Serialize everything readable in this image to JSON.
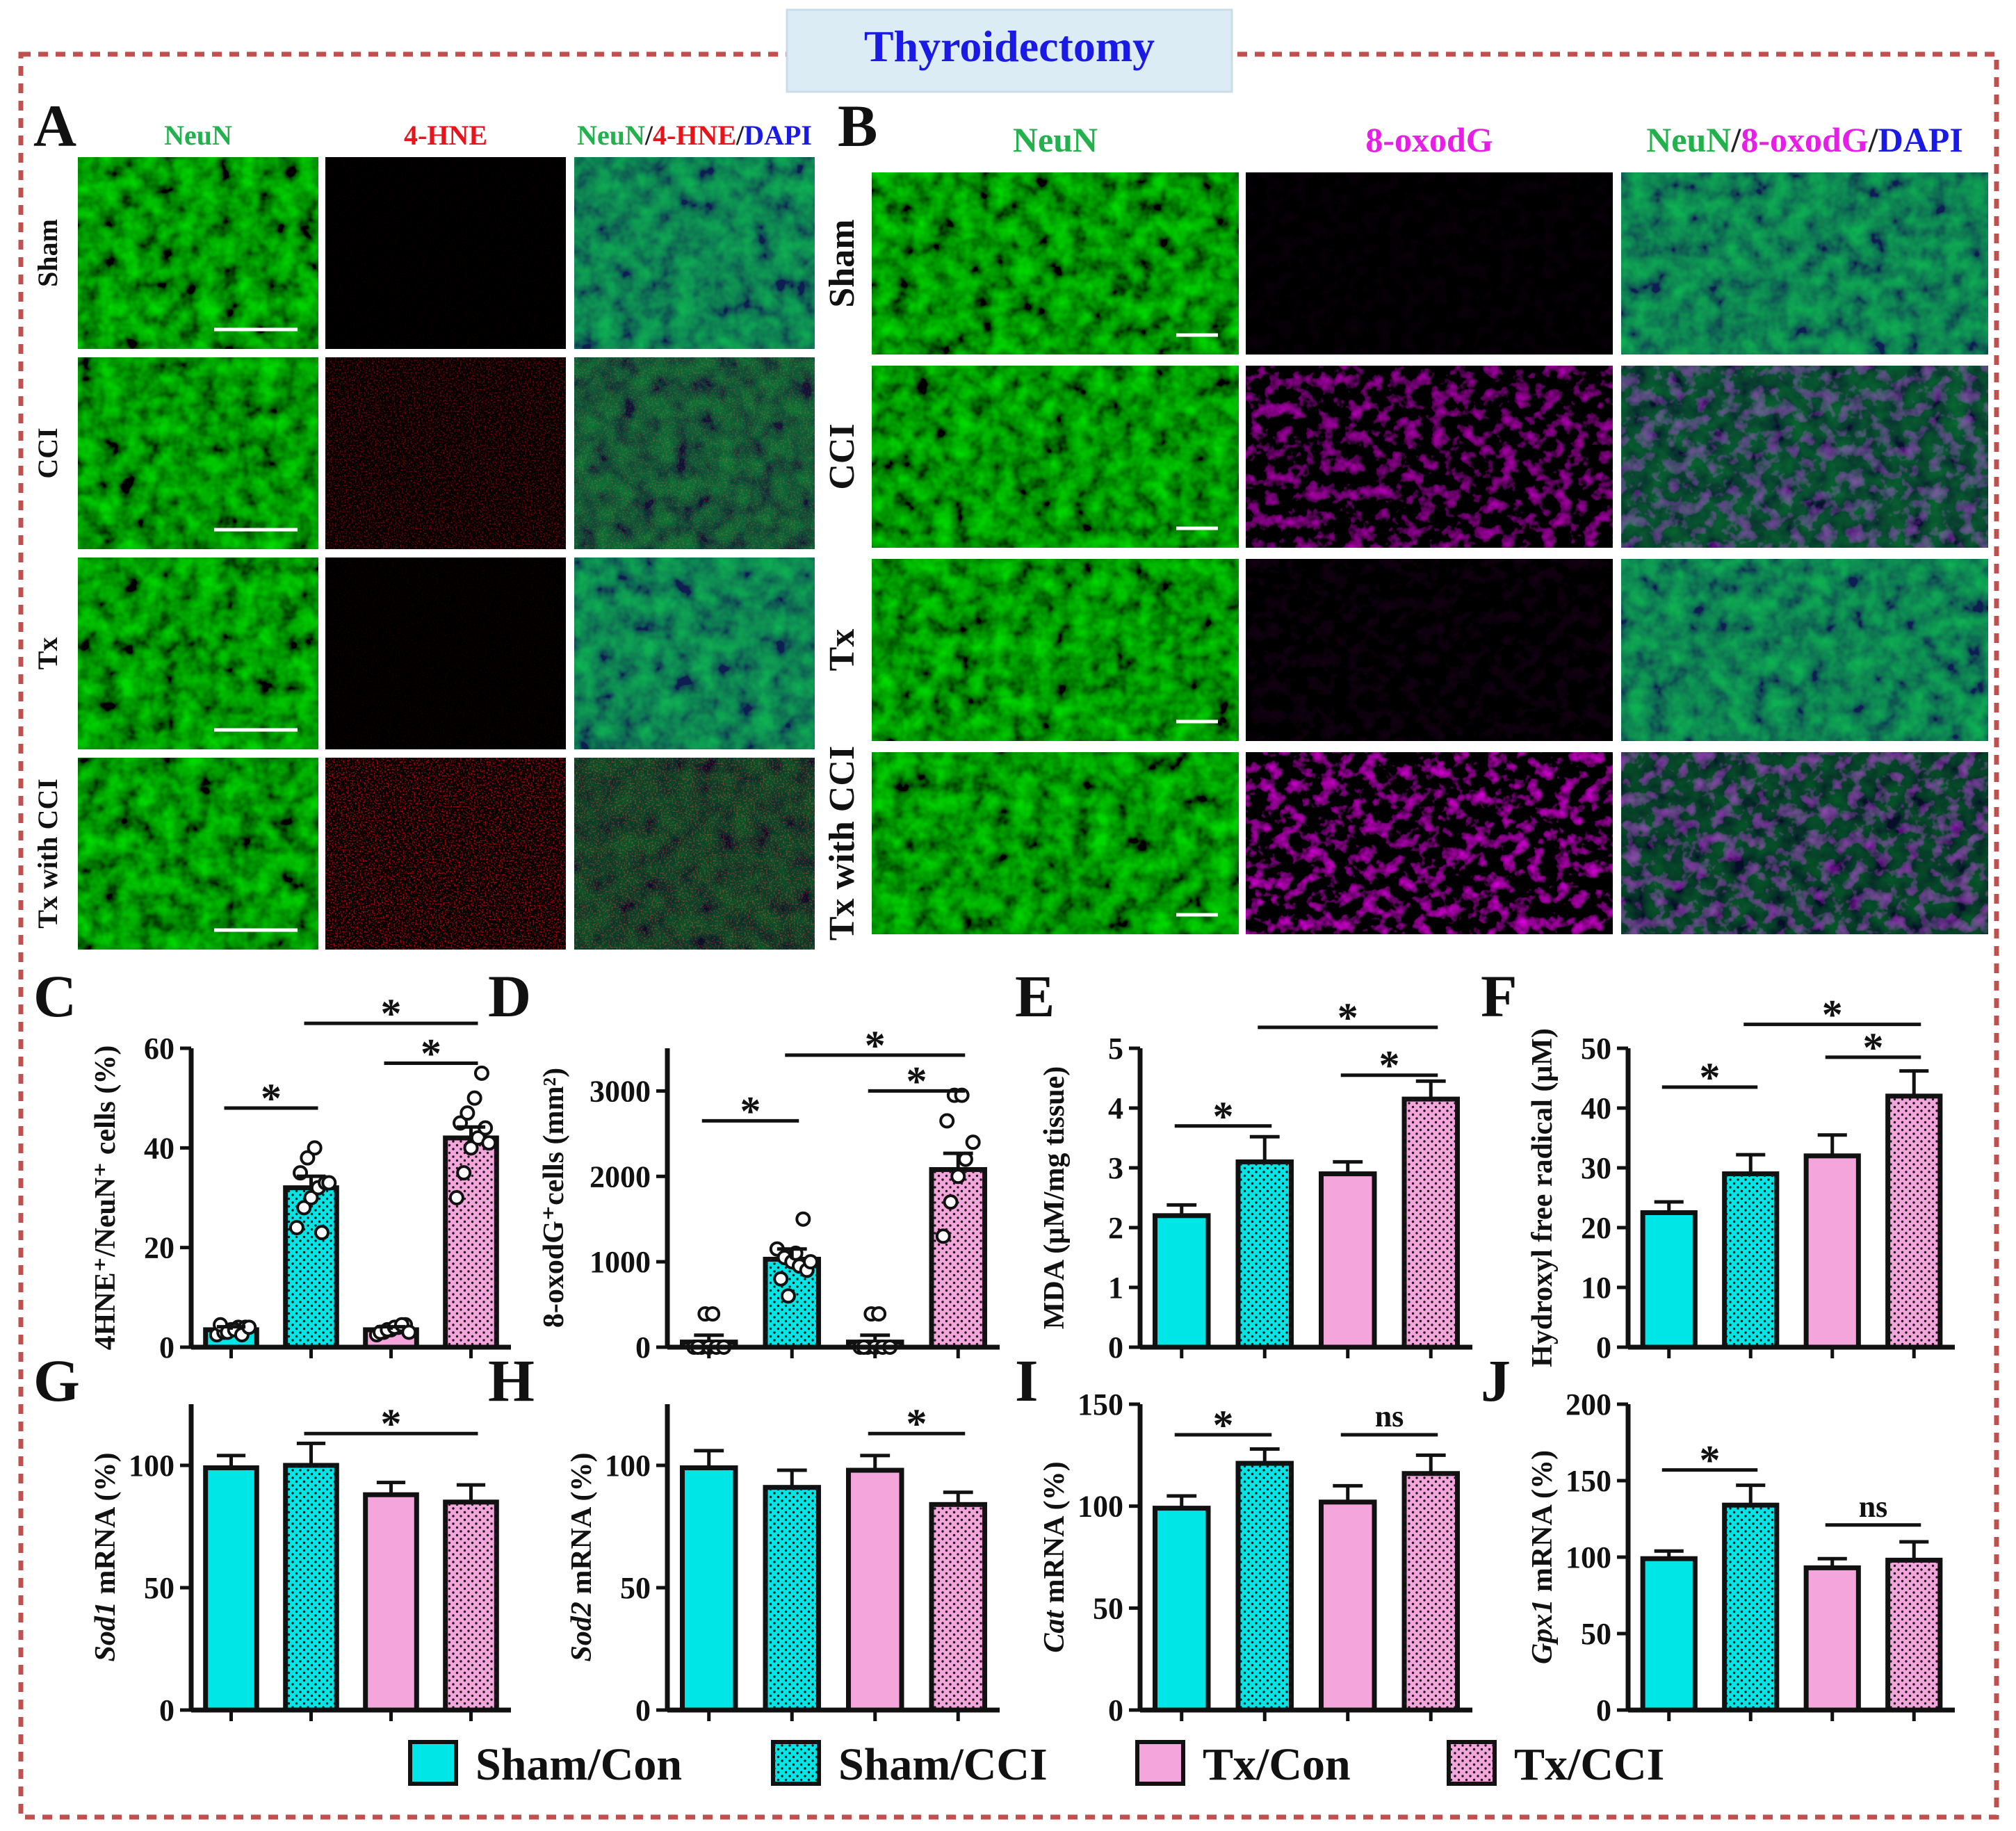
{
  "title": "Thyroidectomy",
  "panel_letters": [
    "A",
    "B",
    "C",
    "D",
    "E",
    "F",
    "G",
    "H",
    "I",
    "J"
  ],
  "panel_A": {
    "columns": [
      {
        "parts": [
          {
            "text": "NeuN",
            "color": "#22b14c"
          }
        ]
      },
      {
        "parts": [
          {
            "text": "4-HNE",
            "color": "#e8141c"
          }
        ]
      },
      {
        "parts": [
          {
            "text": "NeuN",
            "color": "#22b14c"
          },
          {
            "text": "/",
            "color": "#222222"
          },
          {
            "text": "4-HNE",
            "color": "#e8141c"
          },
          {
            "text": "/",
            "color": "#222222"
          },
          {
            "text": "DAPI",
            "color": "#1a1ae6"
          }
        ]
      }
    ],
    "rows": [
      "Sham",
      "CCI",
      "Tx",
      "Tx with CCI"
    ]
  },
  "panel_B": {
    "columns": [
      {
        "parts": [
          {
            "text": "NeuN",
            "color": "#22b14c"
          }
        ]
      },
      {
        "parts": [
          {
            "text": "8-oxodG",
            "color": "#e61ee6"
          }
        ]
      },
      {
        "parts": [
          {
            "text": "NeuN",
            "color": "#22b14c"
          },
          {
            "text": "/",
            "color": "#222222"
          },
          {
            "text": "8-oxodG",
            "color": "#e61ee6"
          },
          {
            "text": "/",
            "color": "#222222"
          },
          {
            "text": "DAPI",
            "color": "#1a1ae6"
          }
        ]
      }
    ],
    "rows": [
      "Sham",
      "CCI",
      "Tx",
      "Tx with CCI"
    ]
  },
  "legend": [
    {
      "label": "Sham/Con",
      "color": "#00e5e5",
      "pattern": false
    },
    {
      "label": "Sham/CCI",
      "color": "#00e5e5",
      "pattern": true
    },
    {
      "label": "Tx/Con",
      "color": "#f4a6dc",
      "pattern": false
    },
    {
      "label": "Tx/CCI",
      "color": "#f4a6dc",
      "pattern": true
    }
  ],
  "chart_data": [
    {
      "panel": "C",
      "type": "bar",
      "categories": [
        "Sham/Con",
        "Sham/CCI",
        "Tx/Con",
        "Tx/CCI"
      ],
      "ylabel": "4HNE⁺/NeuN⁺ cells (%)",
      "ylim": [
        0,
        60
      ],
      "yticks": [
        0,
        20,
        40,
        60
      ],
      "values": [
        3.5,
        32,
        3.5,
        42
      ],
      "errors": [
        0.6,
        2.3,
        0.6,
        2.2
      ],
      "points": [
        [
          2.5,
          3,
          3.5,
          4,
          4,
          4.5,
          3,
          3.5,
          2.5,
          4
        ],
        [
          24,
          28,
          30,
          32,
          33,
          35,
          38,
          40,
          23,
          33
        ],
        [
          2.5,
          3,
          3.5,
          4,
          4.5,
          3,
          3.5,
          4,
          4.5,
          3
        ],
        [
          30,
          35,
          40,
          42,
          44,
          45,
          47,
          50,
          55,
          41
        ]
      ],
      "significance": [
        {
          "a": 0,
          "b": 1,
          "label": "*",
          "y": 48
        },
        {
          "a": 2,
          "b": 3,
          "label": "*",
          "y": 57
        },
        {
          "a": 1,
          "b": 3,
          "label": "*",
          "y": 65
        }
      ]
    },
    {
      "panel": "D",
      "type": "bar",
      "categories": [
        "Sham/Con",
        "Sham/CCI",
        "Tx/Con",
        "Tx/CCI"
      ],
      "ylabel": "8-oxodG⁺cells (mm²)",
      "ylim": [
        0,
        3500
      ],
      "yticks": [
        0,
        1000,
        2000,
        3000
      ],
      "values": [
        60,
        1030,
        60,
        2080
      ],
      "errors": [
        80,
        120,
        80,
        190
      ],
      "points": [
        [
          0,
          0,
          0,
          0,
          0,
          0,
          390,
          390
        ],
        [
          1150,
          1050,
          1000,
          950,
          900,
          800,
          600,
          1100,
          1500,
          1000
        ],
        [
          0,
          0,
          0,
          0,
          0,
          0,
          390,
          390
        ],
        [
          1300,
          1700,
          2000,
          2200,
          2400,
          2650,
          2950,
          2950
        ]
      ],
      "significance": [
        {
          "a": 0,
          "b": 1,
          "label": "*",
          "y": 2650
        },
        {
          "a": 2,
          "b": 3,
          "label": "*",
          "y": 3000
        },
        {
          "a": 1,
          "b": 3,
          "label": "*",
          "y": 3420
        }
      ]
    },
    {
      "panel": "E",
      "type": "bar",
      "categories": [
        "Sham/Con",
        "Sham/CCI",
        "Tx/Con",
        "Tx/CCI"
      ],
      "ylabel": "MDA (μM/mg tissue)",
      "ylim": [
        0,
        5
      ],
      "yticks": [
        0,
        1,
        2,
        3,
        4,
        5
      ],
      "values": [
        2.2,
        3.1,
        2.9,
        4.15
      ],
      "errors": [
        0.18,
        0.42,
        0.2,
        0.3
      ],
      "significance": [
        {
          "a": 0,
          "b": 1,
          "label": "*",
          "y": 3.7
        },
        {
          "a": 2,
          "b": 3,
          "label": "*",
          "y": 4.55
        },
        {
          "a": 1,
          "b": 3,
          "label": "*",
          "y": 5.35
        }
      ]
    },
    {
      "panel": "F",
      "type": "bar",
      "categories": [
        "Sham/Con",
        "Sham/CCI",
        "Tx/Con",
        "Tx/CCI"
      ],
      "ylabel": "Hydroxyl free radical (μM)",
      "ylim": [
        0,
        50
      ],
      "yticks": [
        0,
        10,
        20,
        30,
        40,
        50
      ],
      "values": [
        22.5,
        29,
        32,
        42
      ],
      "errors": [
        1.8,
        3.2,
        3.5,
        4.2
      ],
      "significance": [
        {
          "a": 0,
          "b": 1,
          "label": "*",
          "y": 43.5
        },
        {
          "a": 2,
          "b": 3,
          "label": "*",
          "y": 48.5
        },
        {
          "a": 1,
          "b": 3,
          "label": "*",
          "y": 54
        }
      ]
    },
    {
      "panel": "G",
      "type": "bar",
      "categories": [
        "Sham/Con",
        "Sham/CCI",
        "Tx/Con",
        "Tx/CCI"
      ],
      "ylabel_italic": "Sod1",
      "ylabel": " mRNA (%)",
      "ylim": [
        0,
        125
      ],
      "yticks": [
        0,
        50,
        100
      ],
      "values": [
        99,
        100,
        88,
        85
      ],
      "errors": [
        5,
        9,
        5,
        7
      ],
      "significance": [
        {
          "a": 1,
          "b": 3,
          "label": "*",
          "y": 113
        }
      ]
    },
    {
      "panel": "H",
      "type": "bar",
      "categories": [
        "Sham/Con",
        "Sham/CCI",
        "Tx/Con",
        "Tx/CCI"
      ],
      "ylabel_italic": "Sod2",
      "ylabel": " mRNA (%)",
      "ylim": [
        0,
        125
      ],
      "yticks": [
        0,
        50,
        100
      ],
      "values": [
        99,
        91,
        98,
        84
      ],
      "errors": [
        7,
        7,
        6,
        5
      ],
      "significance": [
        {
          "a": 2,
          "b": 3,
          "label": "*",
          "y": 113
        }
      ]
    },
    {
      "panel": "I",
      "type": "bar",
      "categories": [
        "Sham/Con",
        "Sham/CCI",
        "Tx/Con",
        "Tx/CCI"
      ],
      "ylabel_italic": "Cat",
      "ylabel": " mRNA (%)",
      "ylim": [
        0,
        150
      ],
      "yticks": [
        0,
        50,
        100,
        150
      ],
      "values": [
        99,
        121,
        102,
        116
      ],
      "errors": [
        6,
        7,
        8,
        9
      ],
      "significance": [
        {
          "a": 0,
          "b": 1,
          "label": "*",
          "y": 135
        },
        {
          "a": 2,
          "b": 3,
          "label": "ns",
          "y": 135
        }
      ]
    },
    {
      "panel": "J",
      "type": "bar",
      "categories": [
        "Sham/Con",
        "Sham/CCI",
        "Tx/Con",
        "Tx/CCI"
      ],
      "ylabel_italic": "Gpx1",
      "ylabel": " mRNA (%)",
      "ylim": [
        0,
        200
      ],
      "yticks": [
        0,
        50,
        100,
        150,
        200
      ],
      "values": [
        99,
        134,
        93,
        98
      ],
      "errors": [
        5,
        13,
        6,
        12
      ],
      "significance": [
        {
          "a": 0,
          "b": 1,
          "label": "*",
          "y": 157
        },
        {
          "a": 2,
          "b": 3,
          "label": "ns",
          "y": 121
        }
      ]
    }
  ]
}
